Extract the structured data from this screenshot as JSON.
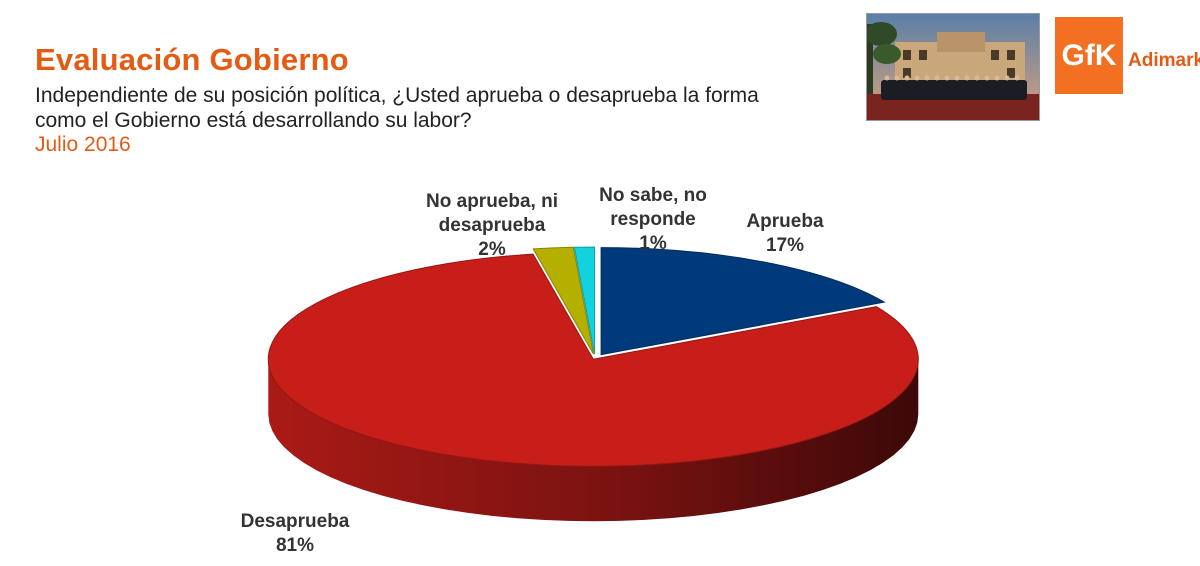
{
  "header": {
    "title": "Evaluación Gobierno",
    "subtitle": "Independiente de su posición política, ¿Usted aprueba o desaprueba la forma como el Gobierno está desarrollando su labor?",
    "date": "Julio 2016"
  },
  "logo": {
    "mark": "GfK",
    "text": "Adimark",
    "color": "#f36f21"
  },
  "photo": {
    "icon": "group-photo-icon"
  },
  "chart_data": {
    "type": "pie",
    "title": "",
    "slices": [
      {
        "label": "Aprueba",
        "label_lines": [
          "Aprueba"
        ],
        "value": 17,
        "value_label": "17%",
        "color": "#003a7a"
      },
      {
        "label": "Desaprueba",
        "label_lines": [
          "Desaprueba"
        ],
        "value": 81,
        "value_label": "81%",
        "color": "#c81e1a"
      },
      {
        "label": "No aprueba, ni desaprueba",
        "label_lines": [
          "No aprueba, ni",
          "desaprueba"
        ],
        "value": 2,
        "value_label": "2%",
        "color": "#b5b000"
      },
      {
        "label": "No sabe, no responde",
        "label_lines": [
          "No sabe, no",
          "responde"
        ],
        "value": 1,
        "value_label": "1%",
        "color": "#12d2e0"
      }
    ]
  }
}
